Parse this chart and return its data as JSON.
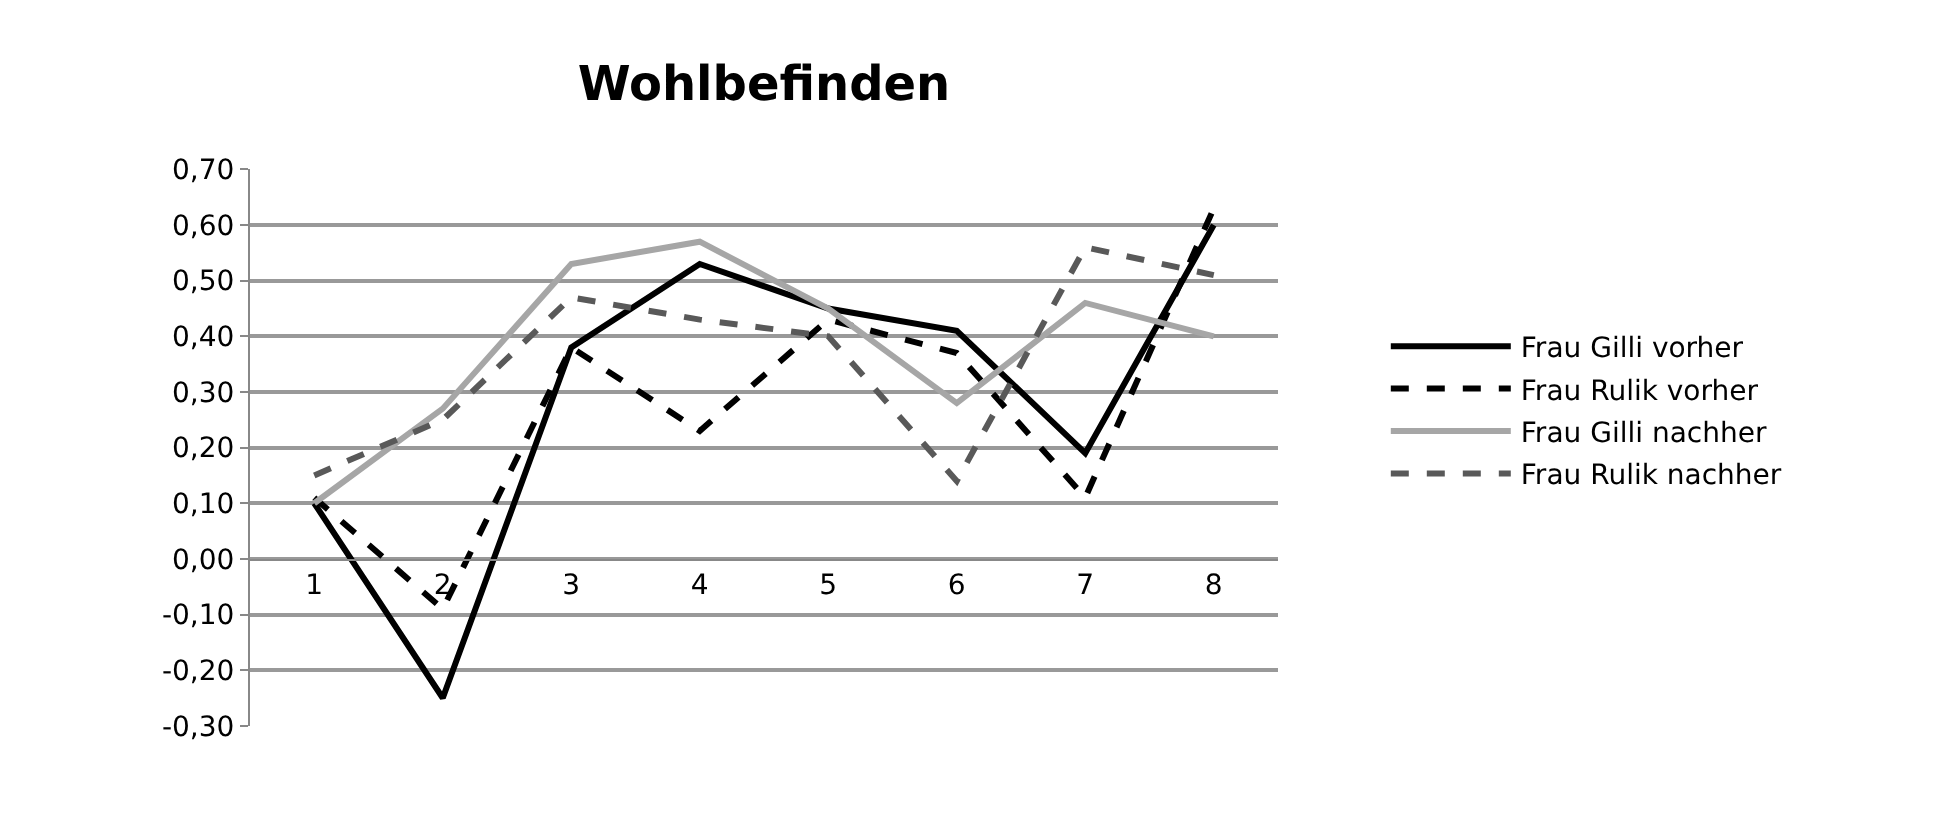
{
  "chart_data": {
    "type": "line",
    "title": "Wohlbefinden",
    "categories": [
      "1",
      "2",
      "3",
      "4",
      "5",
      "6",
      "7",
      "8"
    ],
    "series": [
      {
        "name": "Frau Gilli vorher",
        "color": "#000000",
        "line_style": "solid",
        "values": [
          0.1,
          -0.25,
          0.38,
          0.53,
          0.45,
          0.41,
          0.19,
          0.6
        ]
      },
      {
        "name": "Frau Rulik vorher",
        "color": "#000000",
        "line_style": "dashed",
        "values": [
          0.11,
          -0.09,
          0.38,
          0.23,
          0.43,
          0.37,
          0.11,
          0.63
        ]
      },
      {
        "name": "Frau Gilli nachher",
        "color": "#a6a6a6",
        "line_style": "solid",
        "values": [
          0.1,
          0.27,
          0.53,
          0.57,
          0.45,
          0.28,
          0.46,
          0.4
        ]
      },
      {
        "name": "Frau Rulik nachher",
        "color": "#595959",
        "line_style": "dashed",
        "values": [
          0.15,
          0.25,
          0.47,
          0.43,
          0.4,
          0.14,
          0.56,
          0.51
        ]
      }
    ],
    "ylim": [
      -0.3,
      0.7
    ],
    "yticks": [
      {
        "value": -0.3,
        "label": "-0,30"
      },
      {
        "value": -0.2,
        "label": "-0,20"
      },
      {
        "value": -0.1,
        "label": "-0,10"
      },
      {
        "value": 0,
        "label": "0,00"
      },
      {
        "value": 0.1,
        "label": "0,10"
      },
      {
        "value": 0.2,
        "label": "0,20"
      },
      {
        "value": 0.3,
        "label": "0,30"
      },
      {
        "value": 0.4,
        "label": "0,40"
      },
      {
        "value": 0.5,
        "label": "0,50"
      },
      {
        "value": 0.6,
        "label": "0,60"
      },
      {
        "value": 0.7,
        "label": "0,70"
      }
    ],
    "grid": "y",
    "legend": "right",
    "marker": "none"
  }
}
